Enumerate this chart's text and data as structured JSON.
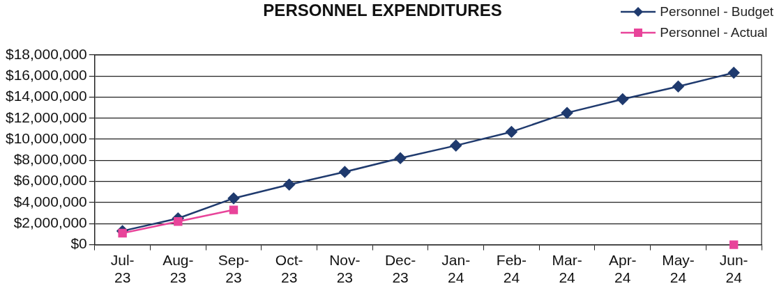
{
  "chart_data": {
    "type": "line",
    "title": "PERSONNEL EXPENDITURES",
    "categories": [
      "Jul-23",
      "Aug-23",
      "Sep-23",
      "Oct-23",
      "Nov-23",
      "Dec-23",
      "Jan-24",
      "Feb-24",
      "Mar-24",
      "Apr-24",
      "May-24",
      "Jun-24"
    ],
    "series": [
      {
        "name": "Personnel - Budget",
        "color": "#1f3a6e",
        "marker": "diamond",
        "values": [
          1300000,
          2500000,
          4400000,
          5700000,
          6900000,
          8200000,
          9400000,
          10700000,
          12500000,
          13800000,
          15000000,
          16300000
        ]
      },
      {
        "name": "Personnel - Actual",
        "color": "#e8449a",
        "marker": "square",
        "values": [
          1100000,
          2200000,
          3300000,
          null,
          null,
          null,
          null,
          null,
          null,
          null,
          null,
          0
        ]
      }
    ],
    "ylim": [
      0,
      18000000
    ],
    "yticks": [
      {
        "value": 0,
        "label": "$0"
      },
      {
        "value": 2000000,
        "label": "$2,000,000"
      },
      {
        "value": 4000000,
        "label": "$4,000,000"
      },
      {
        "value": 6000000,
        "label": "$6,000,000"
      },
      {
        "value": 8000000,
        "label": "$8,000,000"
      },
      {
        "value": 10000000,
        "label": "$10,000,000"
      },
      {
        "value": 12000000,
        "label": "$12,000,000"
      },
      {
        "value": 14000000,
        "label": "$14,000,000"
      },
      {
        "value": 16000000,
        "label": "$16,000,000"
      },
      {
        "value": 18000000,
        "label": "$18,000,000"
      }
    ],
    "grid": "y",
    "legend": "top right",
    "line_style": "solid"
  }
}
